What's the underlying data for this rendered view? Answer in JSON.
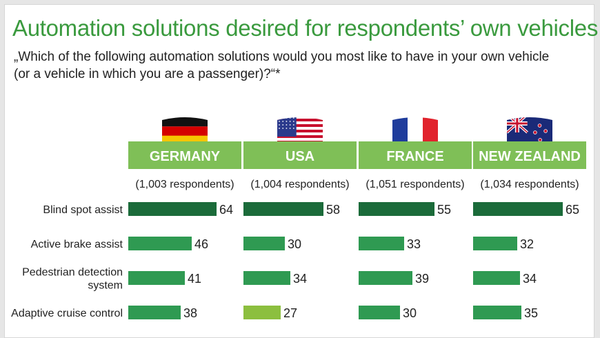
{
  "title": "Automation solutions desired for respondents’ own vehicles",
  "question_lines": [
    "„Which of the following automation solutions would you most like to have in your own vehicle",
    "(or a vehicle in which you are a passenger)?“*"
  ],
  "colors": {
    "header_green": "#7fbf57",
    "bar_max": "#1b6b3a",
    "bar_default": "#2f9a52",
    "bar_min": "#8cbf3f"
  },
  "chart_data": {
    "type": "bar",
    "orientation": "horizontal",
    "categories": [
      [
        "Blind spot assist"
      ],
      [
        "Active brake assist"
      ],
      [
        "Pedestrian detection",
        "system"
      ],
      [
        "Adaptive cruise control"
      ]
    ],
    "series": [
      {
        "name": "GERMANY",
        "respondents": "(1,003 respondents)",
        "flag": "germany-flag-icon",
        "values": [
          64,
          46,
          41,
          38
        ]
      },
      {
        "name": "USA",
        "respondents": "(1,004 respondents)",
        "flag": "usa-flag-icon",
        "values": [
          58,
          30,
          34,
          27
        ]
      },
      {
        "name": "FRANCE",
        "respondents": "(1,051 respondents)",
        "flag": "france-flag-icon",
        "values": [
          55,
          33,
          39,
          30
        ]
      },
      {
        "name": "NEW ZEALAND",
        "respondents": "(1,034 respondents)",
        "flag": "new-zealand-flag-icon",
        "values": [
          65,
          32,
          34,
          35
        ]
      }
    ]
  }
}
